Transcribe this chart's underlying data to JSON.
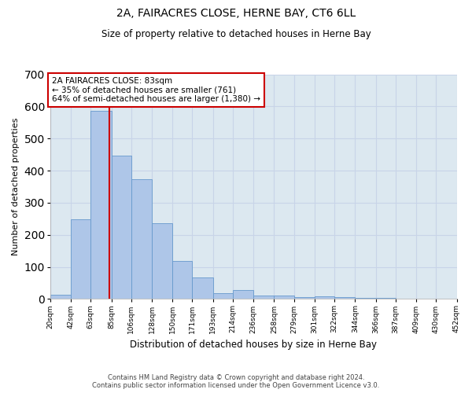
{
  "title1": "2A, FAIRACRES CLOSE, HERNE BAY, CT6 6LL",
  "title2": "Size of property relative to detached houses in Herne Bay",
  "xlabel": "Distribution of detached houses by size in Herne Bay",
  "ylabel": "Number of detached properties",
  "bin_edges": [
    20,
    42,
    63,
    85,
    106,
    128,
    150,
    171,
    193,
    214,
    236,
    258,
    279,
    301,
    322,
    344,
    366,
    387,
    409,
    430,
    452
  ],
  "bar_heights": [
    14,
    248,
    585,
    447,
    372,
    235,
    118,
    68,
    17,
    28,
    10,
    11,
    5,
    8,
    5,
    3,
    4,
    0,
    0,
    0
  ],
  "bar_color": "#aec6e8",
  "bar_edge_color": "#6699cc",
  "property_size": 83,
  "red_line_color": "#cc0000",
  "annotation_line1": "2A FAIRACRES CLOSE: 83sqm",
  "annotation_line2": "← 35% of detached houses are smaller (761)",
  "annotation_line3": "64% of semi-detached houses are larger (1,380) →",
  "annotation_box_color": "#ffffff",
  "annotation_edge_color": "#cc0000",
  "ylim": [
    0,
    700
  ],
  "yticks": [
    0,
    100,
    200,
    300,
    400,
    500,
    600,
    700
  ],
  "grid_color": "#c8d4e8",
  "bg_color": "#dce8f0",
  "footer_line1": "Contains HM Land Registry data © Crown copyright and database right 2024.",
  "footer_line2": "Contains public sector information licensed under the Open Government Licence v3.0."
}
